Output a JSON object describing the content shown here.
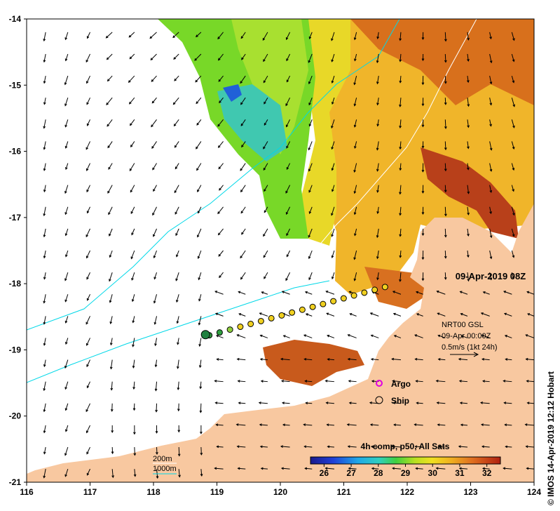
{
  "map": {
    "date_label": "09-Apr-2019 08Z",
    "current_info": {
      "line1": "NRT00 GSL",
      "line2": "09-Apr 00:00Z",
      "line3": "0.5m/s (1kt 24h)"
    },
    "legend": {
      "argo": "Argo",
      "ship": "Ship",
      "argo_color": "#e000e0"
    },
    "isobaths": {
      "shallow": "200m",
      "deep": "1000m",
      "shallow_color": "#ffffff",
      "deep_color": "#00d8e8"
    },
    "colorbar": {
      "title": "4h comp, p50, All Sats",
      "ticks": [
        "26",
        "27",
        "28",
        "29",
        "30",
        "31",
        "32"
      ],
      "min": 25.5,
      "max": 32.5
    },
    "credit": "© IMOS 14-Apr-2019 12:12 Hobart",
    "x_ticks": [
      "116",
      "117",
      "118",
      "119",
      "120",
      "121",
      "122",
      "123",
      "124"
    ],
    "y_ticks": [
      "-14",
      "-15",
      "-16",
      "-17",
      "-18",
      "-19",
      "-20",
      "-21"
    ],
    "lon_range": [
      116,
      124
    ],
    "lat_range": [
      -21,
      -14
    ],
    "land_color": "#f8c8a0"
  }
}
